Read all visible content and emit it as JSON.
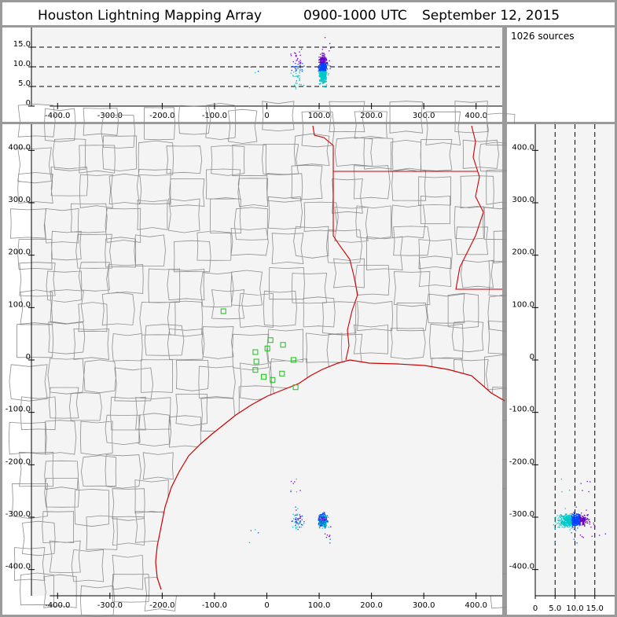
{
  "title": {
    "network": "Houston Lightning Mapping Array",
    "time_range": "0900-1000 UTC",
    "date": "September 12, 2015"
  },
  "info_panel": {
    "source_count": "1026 sources"
  },
  "colors": {
    "frame": "#9a9a9a",
    "panel_bg": "#f4f4f4",
    "county_line": "#8c8c8c",
    "state_line": "#cc0000",
    "coast_line": "#cc0000",
    "station": "#22cc22",
    "source_low": "#6a00c8",
    "source_mid": "#0044ff",
    "source_high": "#00c8c8"
  },
  "axes": {
    "x_ticks": [
      "-400.0",
      "-300.0",
      "-200.0",
      "-100.0",
      "0",
      "100.0",
      "200.0",
      "300.0",
      "400.0"
    ],
    "x_tick_values": [
      -400,
      -300,
      -200,
      -100,
      0,
      100,
      200,
      300,
      400
    ],
    "y_ticks": [
      "400.0",
      "300.0",
      "200.0",
      "100.0",
      "0",
      "-100.0",
      "-200.0",
      "-300.0",
      "-400.0"
    ],
    "y_tick_values": [
      400,
      300,
      200,
      100,
      0,
      -100,
      -200,
      -300,
      -400
    ],
    "alt_ticks": [
      "15.0",
      "10.0",
      "5.0",
      "0"
    ],
    "alt_tick_values": [
      15,
      10,
      5,
      0
    ],
    "alt_x_ticks": [
      "0",
      "5.0",
      "10.0",
      "15.0"
    ],
    "alt_x_tick_values": [
      0,
      5,
      10,
      15
    ],
    "xlim": [
      -450,
      450
    ],
    "ylim": [
      -450,
      450
    ],
    "alt_lim": [
      0,
      20
    ]
  },
  "stations": [
    {
      "x": -83,
      "y": 93
    },
    {
      "x": -22,
      "y": 15
    },
    {
      "x": 7,
      "y": 38
    },
    {
      "x": 31,
      "y": 29
    },
    {
      "x": 1,
      "y": 22
    },
    {
      "x": -20,
      "y": -3
    },
    {
      "x": 51,
      "y": 0
    },
    {
      "x": -22,
      "y": -19
    },
    {
      "x": -6,
      "y": -32
    },
    {
      "x": 11,
      "y": -38
    },
    {
      "x": 29,
      "y": -26
    },
    {
      "x": 55,
      "y": -52
    }
  ],
  "chart_data": {
    "type": "scatter",
    "source_count": 1026,
    "clusters": [
      {
        "x": 106,
        "y": -305,
        "alt": 9.5,
        "count": 700
      },
      {
        "x": 58,
        "y": -305,
        "alt": 10,
        "count": 60
      },
      {
        "x": 52,
        "y": -238,
        "alt": 11,
        "count": 8
      },
      {
        "x": -25,
        "y": -333,
        "alt": 8,
        "count": 4
      },
      {
        "x": 120,
        "y": -330,
        "alt": 12,
        "count": 10
      }
    ],
    "xlim": [
      -450,
      450
    ],
    "ylim": [
      -450,
      450
    ],
    "alt_lim": [
      0,
      20
    ],
    "grid_lines_alt": [
      5,
      10,
      15
    ]
  }
}
